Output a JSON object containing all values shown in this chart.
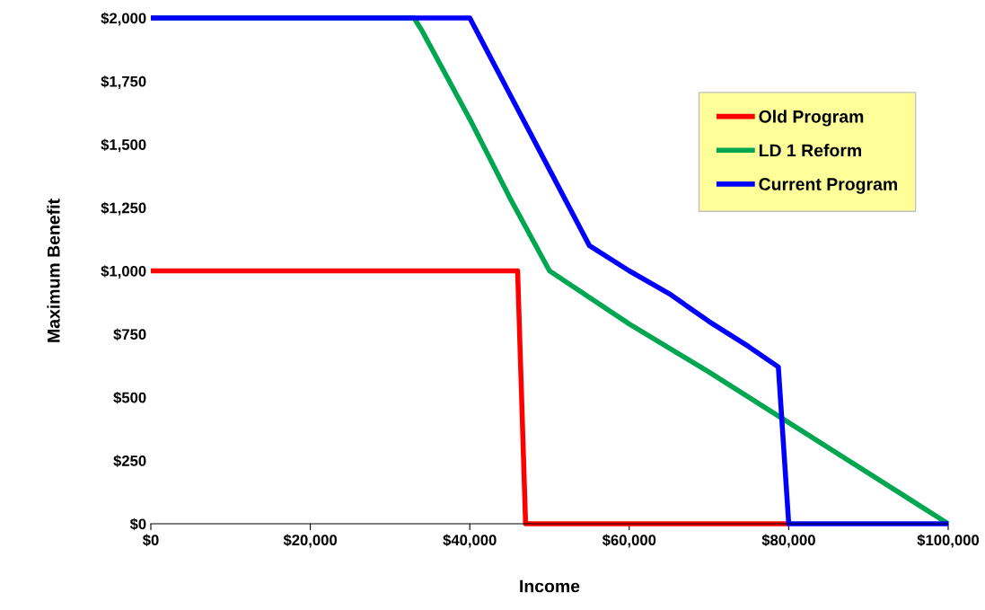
{
  "chart_data": {
    "type": "line",
    "xlabel": "Income",
    "ylabel": "Maximum Benefit",
    "xlim": [
      0,
      100000
    ],
    "ylim": [
      0,
      2000
    ],
    "xticks": [
      {
        "value": 0,
        "label": "$0"
      },
      {
        "value": 20000,
        "label": "$20,000"
      },
      {
        "value": 40000,
        "label": "$40,000"
      },
      {
        "value": 60000,
        "label": "$60,000"
      },
      {
        "value": 80000,
        "label": "$80,000"
      },
      {
        "value": 100000,
        "label": "$100,000"
      }
    ],
    "yticks": [
      {
        "value": 0,
        "label": "$0"
      },
      {
        "value": 250,
        "label": "$250"
      },
      {
        "value": 500,
        "label": "$500"
      },
      {
        "value": 750,
        "label": "$750"
      },
      {
        "value": 1000,
        "label": "$1,000"
      },
      {
        "value": 1250,
        "label": "$1,250"
      },
      {
        "value": 1500,
        "label": "$1,500"
      },
      {
        "value": 1750,
        "label": "$1,750"
      },
      {
        "value": 2000,
        "label": "$2,000"
      }
    ],
    "grid": false,
    "legend": "top right",
    "marker": "none",
    "line_style": "solid",
    "series": [
      {
        "name": "Old Program",
        "color": "#ff0000",
        "x": [
          0,
          46000,
          47000,
          80000
        ],
        "values": [
          1000,
          1000,
          0,
          0
        ]
      },
      {
        "name": "LD 1 Reform",
        "color": "#00a650",
        "x": [
          0,
          33000,
          34000,
          40000,
          45000,
          50000,
          60000,
          70000,
          80000,
          90000,
          100000
        ],
        "values": [
          2000,
          2000,
          1950,
          1600,
          1290,
          1000,
          790,
          600,
          400,
          200,
          0
        ]
      },
      {
        "name": "Current Program",
        "color": "#0000ff",
        "x": [
          0,
          40000,
          41000,
          45000,
          50000,
          55000,
          60000,
          65000,
          70000,
          75000,
          78700,
          80000,
          100000
        ],
        "values": [
          2000,
          2000,
          1940,
          1700,
          1400,
          1100,
          1000,
          910,
          800,
          700,
          620,
          0,
          0
        ]
      }
    ]
  }
}
